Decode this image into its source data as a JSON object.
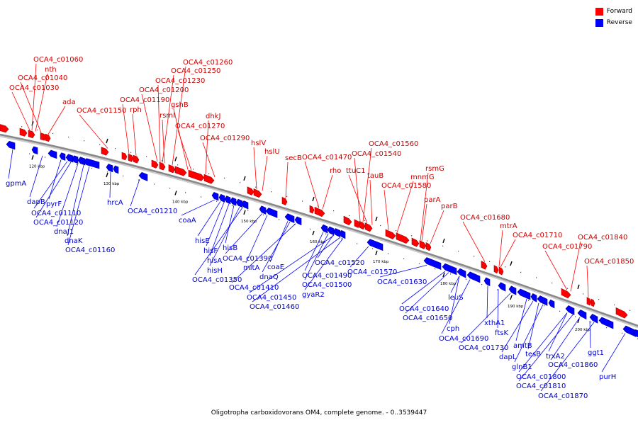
{
  "legend": {
    "forward_label": "Forward",
    "reverse_label": "Reverse",
    "forward_color": "#ff0000",
    "reverse_color": "#0000ff"
  },
  "caption": "Oligotropha carboxidovorans OM4, complete genome. - 0..3539447",
  "ticks": [
    "120 kbp",
    "130 kbp",
    "140 kbp",
    "150 kbp",
    "160 kbp",
    "170 kbp",
    "180 kbp",
    "190 kbp",
    "200 kbp"
  ],
  "forward_labels": [
    "OCA4_c01060",
    "nth",
    "OCA4_c01040",
    "OCA4_c01030",
    "ada",
    "OCA4_c01150",
    "OCA4_c01260",
    "OCA4_c01250",
    "OCA4_c01230",
    "OCA4_c01200",
    "OCA4_c01190",
    "gshB",
    "rph",
    "rsmI",
    "dhkJ",
    "OCA4_c01270",
    "OCA4_c01290",
    "hslV",
    "hslU",
    "secB",
    "OCA4_c01470",
    "OCA4_c01560",
    "OCA4_c01540",
    "rho",
    "ttuC1",
    "tauB",
    "rsmG",
    "mnmG",
    "OCA4_c01580",
    "parA",
    "parB",
    "OCA4_c01680",
    "mtrA",
    "OCA4_c01710",
    "OCA4_c01840",
    "OCA4_c01790",
    "OCA4_c01850"
  ],
  "reverse_labels": [
    "gpmA",
    "dapB",
    "pyrF",
    "OCA4_c01110",
    "OCA4_c01120",
    "dnaJ1",
    "dnaK",
    "OCA4_c01160",
    "hrcA",
    "OCA4_c01210",
    "coaA",
    "hisE",
    "hisF",
    "hisA",
    "hisB",
    "hisH",
    "OCA4_c01350",
    "OCA4_c01390",
    "mltA",
    "coaE",
    "dnaQ",
    "OCA4_c01410",
    "OCA4_c01490",
    "OCA4_c01500",
    "OCA4_c01450",
    "OCA4_c01460",
    "gyaR2",
    "OCA4_c01520",
    "OCA4_c01570",
    "OCA4_c01630",
    "leuS",
    "OCA4_c01640",
    "OCA4_c01650",
    "cph",
    "OCA4_c01690",
    "xthA1",
    "ftsK",
    "OCA4_c01730",
    "amtB",
    "dapL",
    "tesB",
    "glnB1",
    "trxA2",
    "OCA4_c01860",
    "ggt1",
    "OCA4_c01800",
    "OCA4_c01810",
    "OCA4_c01870",
    "purH"
  ]
}
